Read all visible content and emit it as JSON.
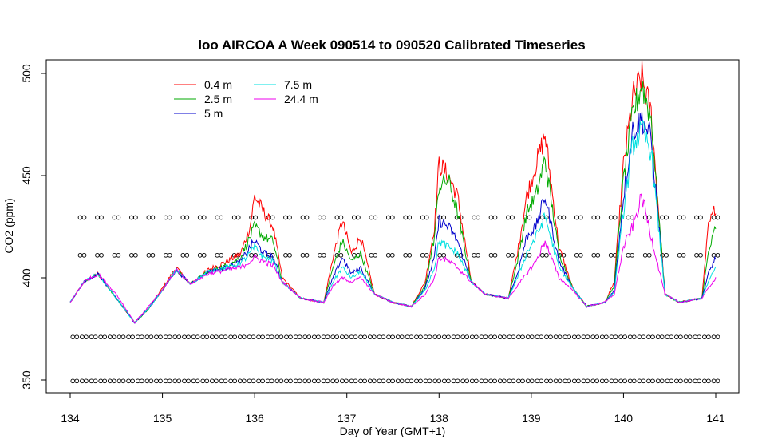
{
  "chart_data": {
    "type": "line",
    "title": "loo AIRCOA A  Week 090514 to 090520  Calibrated Timeseries",
    "xlabel": "Day of Year (GMT+1)",
    "ylabel": "CO2 (ppm)",
    "xlim": [
      134,
      141
    ],
    "ylim": [
      345,
      505
    ],
    "x_ticks": [
      134,
      135,
      136,
      137,
      138,
      139,
      140,
      141
    ],
    "y_ticks": [
      350,
      400,
      450,
      500
    ],
    "legend": {
      "placement": "top-left",
      "entries": [
        {
          "name": "0.4 m",
          "color": "#ff0000"
        },
        {
          "name": "2.5 m",
          "color": "#00aa00"
        },
        {
          "name": "5 m",
          "color": "#0000cc"
        },
        {
          "name": "7.5 m",
          "color": "#00e0e0"
        },
        {
          "name": "24.4 m",
          "color": "#ee00ee"
        }
      ]
    },
    "series": [
      {
        "name": "0.4 m",
        "color": "#ff0000",
        "x": [
          134.0,
          134.15,
          134.3,
          134.5,
          134.7,
          134.85,
          135.0,
          135.15,
          135.3,
          135.5,
          135.7,
          135.85,
          135.95,
          136.0,
          136.1,
          136.2,
          136.3,
          136.5,
          136.75,
          136.85,
          136.95,
          137.05,
          137.15,
          137.3,
          137.5,
          137.7,
          137.85,
          137.95,
          138.0,
          138.1,
          138.2,
          138.35,
          138.5,
          138.75,
          138.85,
          138.95,
          139.05,
          139.15,
          139.3,
          139.45,
          139.6,
          139.8,
          139.9,
          140.0,
          140.1,
          140.2,
          140.3,
          140.45,
          140.6,
          140.85,
          140.92,
          141.0
        ],
        "y": [
          388,
          398,
          402,
          390,
          378,
          385,
          395,
          405,
          397,
          404,
          408,
          412,
          425,
          440,
          432,
          425,
          400,
          390,
          388,
          410,
          428,
          412,
          420,
          392,
          388,
          386,
          398,
          425,
          456,
          450,
          440,
          398,
          392,
          390,
          412,
          440,
          455,
          470,
          415,
          395,
          386,
          388,
          398,
          455,
          488,
          498,
          480,
          392,
          388,
          390,
          425,
          435
        ]
      },
      {
        "name": "2.5 m",
        "color": "#00aa00",
        "x": [
          134.0,
          134.15,
          134.3,
          134.5,
          134.7,
          134.85,
          135.0,
          135.15,
          135.3,
          135.5,
          135.7,
          135.85,
          135.95,
          136.0,
          136.1,
          136.2,
          136.3,
          136.5,
          136.75,
          136.85,
          136.95,
          137.05,
          137.15,
          137.3,
          137.5,
          137.7,
          137.85,
          137.95,
          138.0,
          138.1,
          138.2,
          138.35,
          138.5,
          138.75,
          138.85,
          138.95,
          139.05,
          139.15,
          139.3,
          139.45,
          139.6,
          139.8,
          139.9,
          140.0,
          140.1,
          140.2,
          140.3,
          140.45,
          140.6,
          140.85,
          140.92,
          141.0
        ],
        "y": [
          388,
          398,
          402,
          390,
          378,
          385,
          394,
          404,
          397,
          403,
          406,
          410,
          420,
          425,
          420,
          418,
          398,
          390,
          388,
          405,
          418,
          408,
          412,
          392,
          388,
          386,
          396,
          420,
          445,
          448,
          432,
          398,
          392,
          390,
          408,
          432,
          440,
          458,
          412,
          395,
          386,
          388,
          396,
          448,
          480,
          495,
          478,
          392,
          388,
          390,
          412,
          425
        ]
      },
      {
        "name": "5 m",
        "color": "#0000cc",
        "x": [
          134.0,
          134.15,
          134.3,
          134.5,
          134.7,
          134.85,
          135.0,
          135.15,
          135.3,
          135.5,
          135.7,
          135.85,
          135.95,
          136.0,
          136.1,
          136.2,
          136.3,
          136.5,
          136.75,
          136.85,
          136.95,
          137.05,
          137.15,
          137.3,
          137.5,
          137.7,
          137.85,
          137.95,
          138.0,
          138.1,
          138.2,
          138.35,
          138.5,
          138.75,
          138.85,
          138.95,
          139.05,
          139.15,
          139.3,
          139.45,
          139.6,
          139.8,
          139.9,
          140.0,
          140.1,
          140.2,
          140.3,
          140.45,
          140.6,
          140.85,
          140.92,
          141.0
        ],
        "y": [
          388,
          398,
          402,
          390,
          378,
          385,
          394,
          404,
          397,
          403,
          405,
          408,
          415,
          418,
          412,
          410,
          398,
          390,
          388,
          400,
          410,
          402,
          405,
          392,
          388,
          386,
          395,
          410,
          428,
          425,
          418,
          398,
          392,
          390,
          402,
          420,
          425,
          440,
          408,
          395,
          386,
          388,
          394,
          440,
          472,
          478,
          468,
          392,
          388,
          390,
          402,
          410
        ]
      },
      {
        "name": "7.5 m",
        "color": "#00e0e0",
        "x": [
          134.0,
          134.15,
          134.3,
          134.5,
          134.7,
          134.85,
          135.0,
          135.15,
          135.3,
          135.5,
          135.7,
          135.85,
          135.95,
          136.0,
          136.1,
          136.2,
          136.3,
          136.5,
          136.75,
          136.85,
          136.95,
          137.05,
          137.15,
          137.3,
          137.5,
          137.7,
          137.85,
          137.95,
          138.0,
          138.1,
          138.2,
          138.35,
          138.5,
          138.75,
          138.85,
          138.95,
          139.05,
          139.15,
          139.3,
          139.45,
          139.6,
          139.8,
          139.9,
          140.0,
          140.1,
          140.2,
          140.3,
          140.45,
          140.6,
          140.85,
          140.92,
          141.0
        ],
        "y": [
          388,
          398,
          402,
          390,
          378,
          385,
          394,
          404,
          397,
          403,
          405,
          407,
          412,
          415,
          410,
          408,
          398,
          390,
          388,
          398,
          405,
          400,
          403,
          392,
          388,
          386,
          394,
          405,
          418,
          415,
          412,
          398,
          392,
          390,
          400,
          412,
          420,
          430,
          405,
          395,
          386,
          388,
          393,
          432,
          465,
          472,
          462,
          392,
          388,
          390,
          398,
          405
        ]
      },
      {
        "name": "24.4 m",
        "color": "#ee00ee",
        "x": [
          134.0,
          134.15,
          134.3,
          134.5,
          134.7,
          134.85,
          135.0,
          135.15,
          135.3,
          135.5,
          135.7,
          135.85,
          135.95,
          136.0,
          136.1,
          136.2,
          136.3,
          136.5,
          136.75,
          136.85,
          136.95,
          137.05,
          137.15,
          137.3,
          137.5,
          137.7,
          137.85,
          137.95,
          138.0,
          138.1,
          138.2,
          138.35,
          138.5,
          138.75,
          138.85,
          138.95,
          139.05,
          139.15,
          139.3,
          139.45,
          139.6,
          139.8,
          139.9,
          140.0,
          140.1,
          140.2,
          140.3,
          140.45,
          140.6,
          140.85,
          140.92,
          141.0
        ],
        "y": [
          388,
          398,
          402,
          392,
          378,
          386,
          394,
          404,
          397,
          402,
          404,
          405,
          408,
          410,
          408,
          406,
          398,
          390,
          388,
          396,
          400,
          398,
          400,
          392,
          388,
          386,
          392,
          400,
          410,
          408,
          405,
          398,
          392,
          390,
          396,
          402,
          408,
          418,
          400,
          394,
          386,
          388,
          392,
          415,
          425,
          440,
          420,
          392,
          388,
          390,
          395,
          400
        ]
      }
    ],
    "marker_rows": [
      {
        "y": 429.5,
        "x_start": 134.13,
        "x_end": 141.0,
        "count": 38
      },
      {
        "y": 411,
        "x_start": 134.13,
        "x_end": 141.0,
        "count": 38
      },
      {
        "y": 371,
        "x_start": 134.05,
        "x_end": 141.0,
        "count": 70
      },
      {
        "y": 349.5,
        "x_start": 134.05,
        "x_end": 141.0,
        "count": 70
      }
    ]
  }
}
